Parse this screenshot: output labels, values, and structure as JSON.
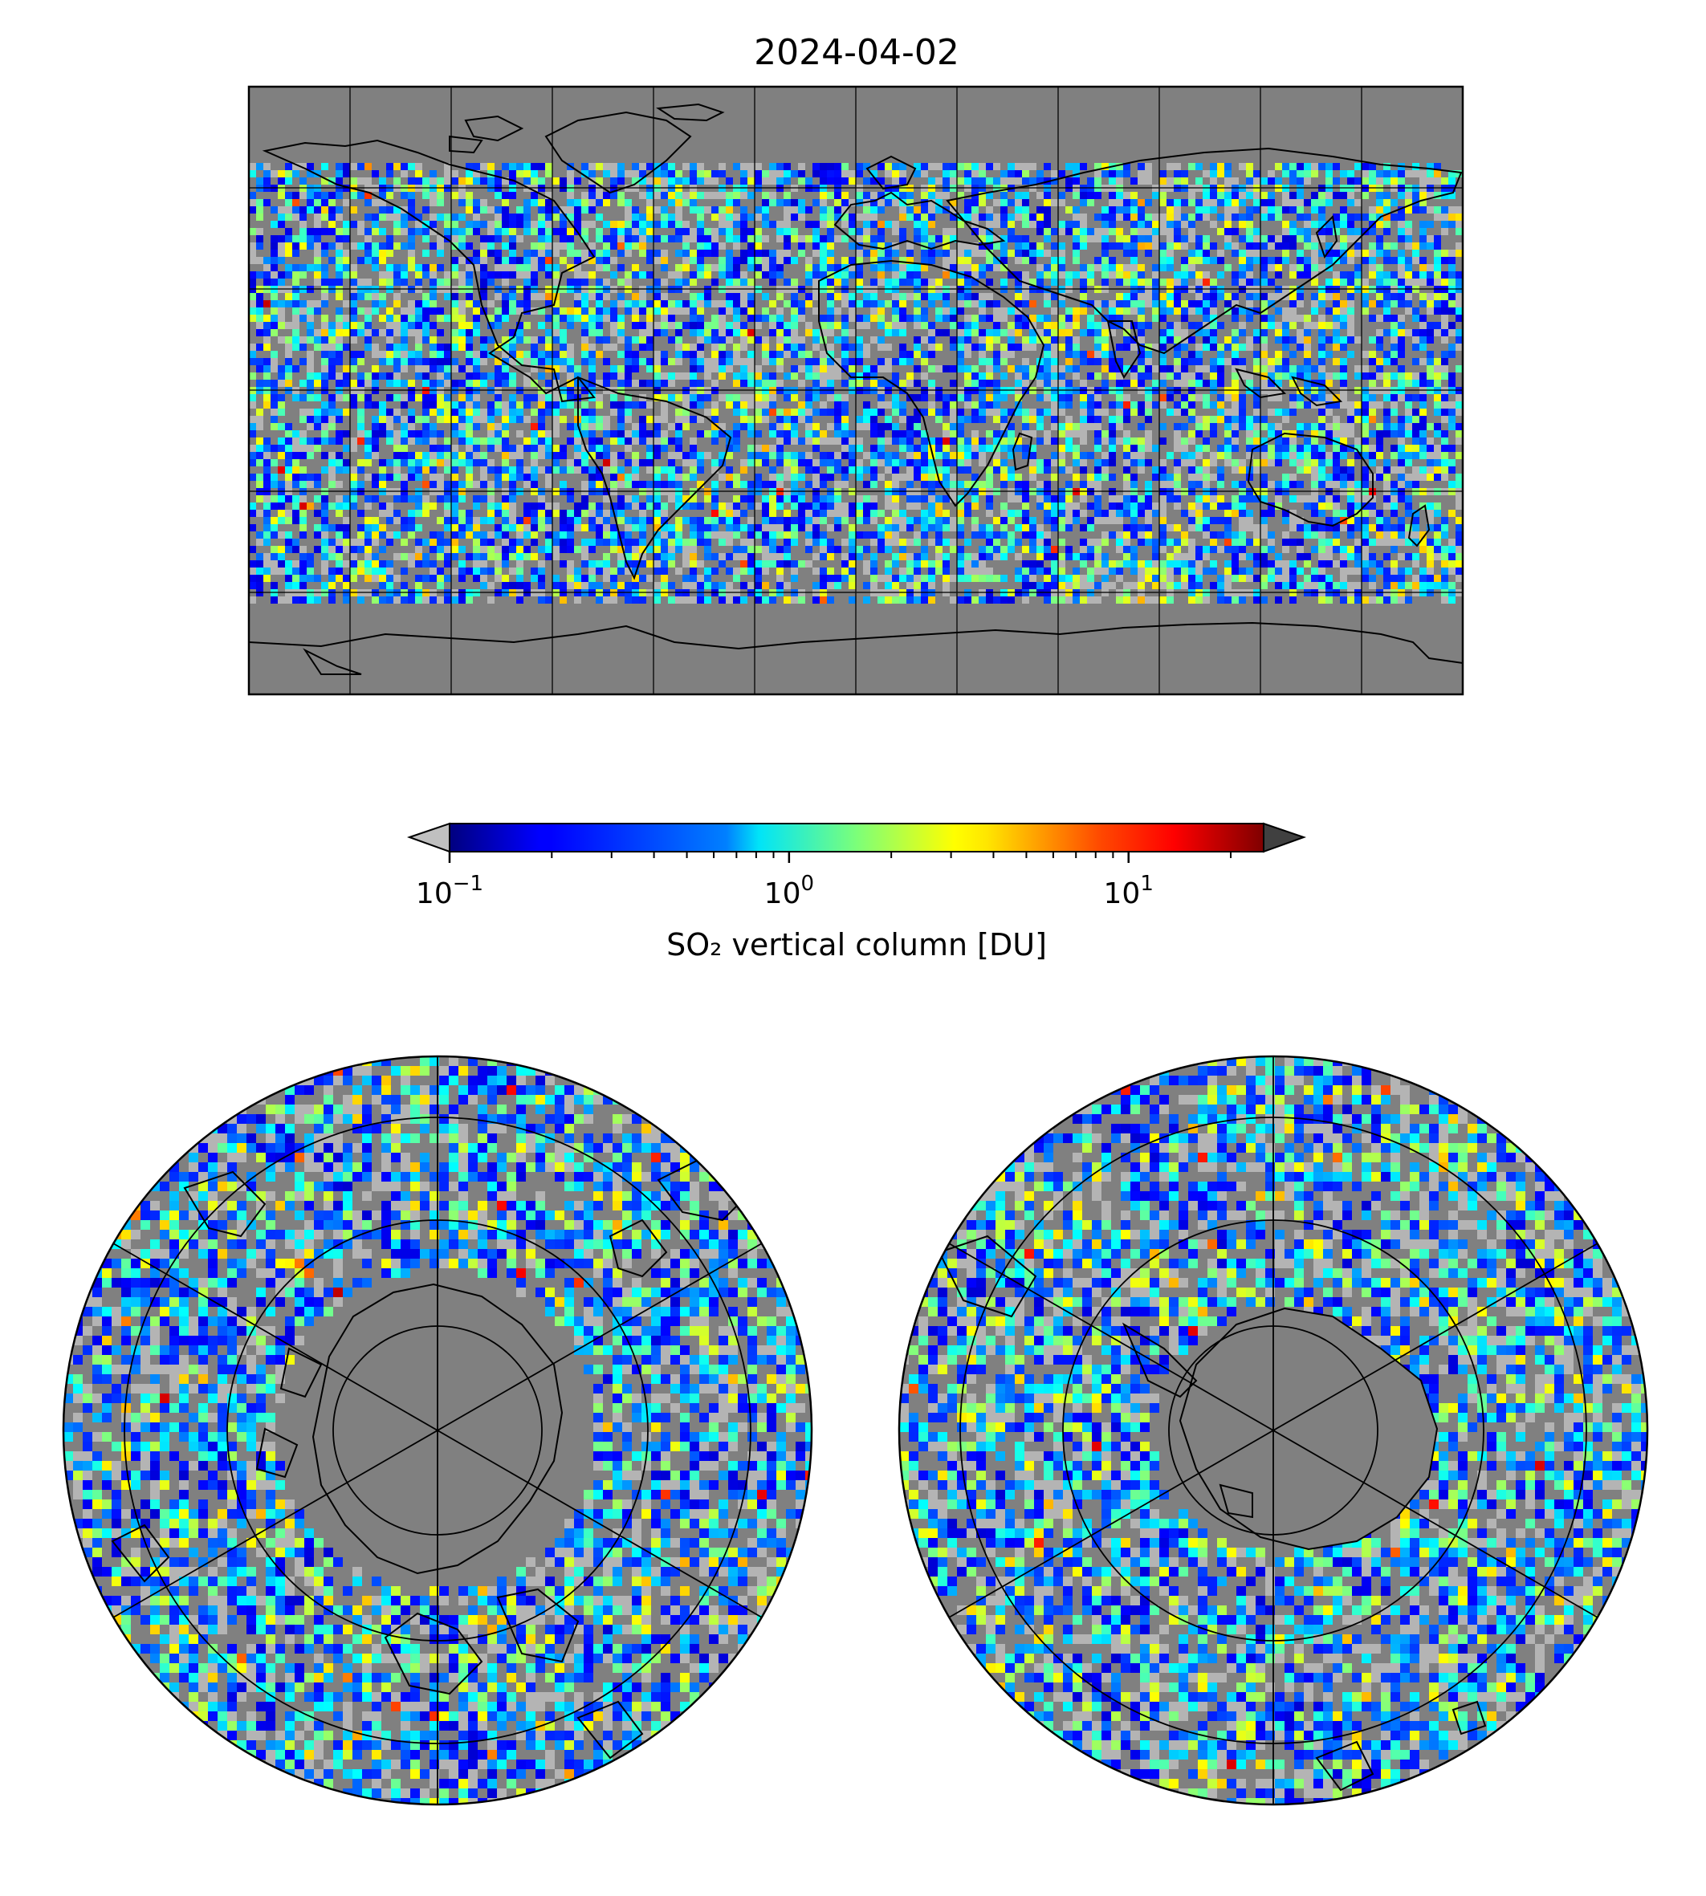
{
  "title": "2024-04-02",
  "colorbar": {
    "label": "SO₂ vertical column [DU]",
    "scale": "log",
    "colormap": "jet",
    "range": [
      0.1,
      25
    ],
    "extend": "both",
    "under_color": "#c0c0c0",
    "over_color": "#404040",
    "ticks": [
      {
        "value": 0.1,
        "base": "10",
        "exp": "−1"
      },
      {
        "value": 1,
        "base": "10",
        "exp": "0"
      },
      {
        "value": 10,
        "base": "10",
        "exp": "1"
      }
    ]
  },
  "maps": {
    "background_color": "#808080",
    "nodata_low_color": "#b4b4b4",
    "coastline_color": "#000000",
    "global": {
      "projection": "plate-carree",
      "gridline_lon_step_deg": 30,
      "gridline_lat_step_deg": 30
    },
    "north_polar": {
      "projection": "north-polar-stereographic",
      "gridline_lat_rings": 4,
      "meridians": 6
    },
    "south_polar": {
      "projection": "south-polar-stereographic",
      "gridline_lat_rings": 4,
      "meridians": 6
    }
  }
}
